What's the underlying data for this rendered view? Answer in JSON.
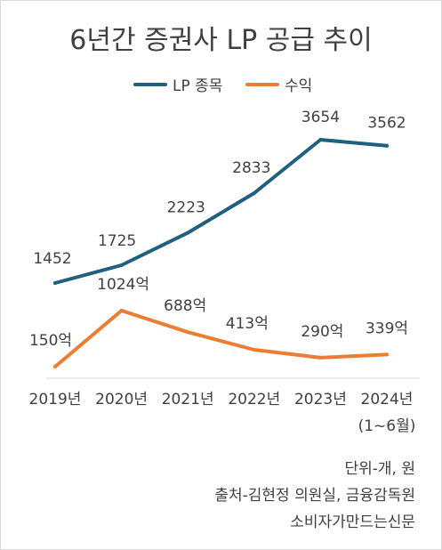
{
  "chart_data": {
    "type": "line",
    "title": "6년간 증권사 LP 공급 추이",
    "categories": [
      "2019년",
      "2020년",
      "2021년",
      "2022년",
      "2023년",
      "2024년"
    ],
    "category_sublabels": [
      "",
      "",
      "",
      "",
      "",
      "(1~6월)"
    ],
    "series": [
      {
        "name": "LP 종목",
        "color": "#1f5f7f",
        "values": [
          1452,
          1725,
          2223,
          2833,
          3654,
          3562
        ],
        "labels": [
          "1452",
          "1725",
          "2223",
          "2833",
          "3654",
          "3562"
        ]
      },
      {
        "name": "수익",
        "color": "#ed7d31",
        "values": [
          150,
          1024,
          688,
          413,
          290,
          339
        ],
        "labels": [
          "150억",
          "1024억",
          "688억",
          "413억",
          "290억",
          "339억"
        ]
      }
    ],
    "legend_position": "top",
    "grid": false
  },
  "notes": {
    "unit": "단위-개, 원",
    "source": "출처-김현정 의원실, 금융감독원",
    "publisher": "소비자가만드는신문"
  }
}
